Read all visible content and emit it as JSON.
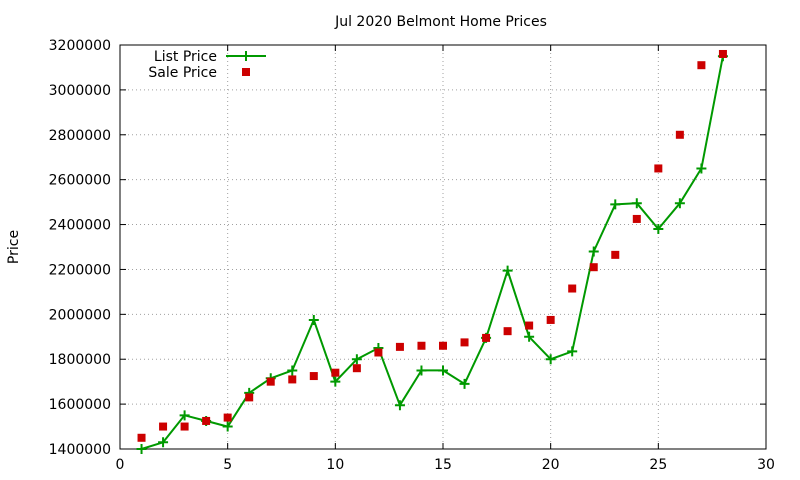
{
  "chart_data": {
    "type": "line",
    "title": "Jul 2020 Belmont Home Prices",
    "xlabel": "",
    "ylabel": "Price",
    "xlim": [
      0,
      30
    ],
    "ylim": [
      1400000,
      3200000
    ],
    "x_ticks": [
      "0",
      "5",
      "10",
      "15",
      "20",
      "25",
      "30"
    ],
    "y_ticks": [
      "1400000",
      "1600000",
      "1800000",
      "2000000",
      "2200000",
      "2400000",
      "2600000",
      "2800000",
      "3000000",
      "3200000"
    ],
    "grid": true,
    "legend_position": "top-left",
    "x": [
      1,
      2,
      3,
      4,
      5,
      6,
      7,
      8,
      9,
      10,
      11,
      12,
      13,
      14,
      15,
      16,
      17,
      18,
      19,
      20,
      21,
      22,
      23,
      24,
      25,
      26,
      27,
      28
    ],
    "series": [
      {
        "name": "List Price",
        "style": "linespoints",
        "color": "#009900",
        "values": [
          1400000,
          1430000,
          1550000,
          1525000,
          1500000,
          1650000,
          1715000,
          1750000,
          1975000,
          1700000,
          1800000,
          1850000,
          1595000,
          1750000,
          1750000,
          1690000,
          1895000,
          2195000,
          1900000,
          1800000,
          1835000,
          2280000,
          2490000,
          2495000,
          2380000,
          2495000,
          2650000,
          3150000
        ]
      },
      {
        "name": "Sale Price",
        "style": "points",
        "color": "#cc0000",
        "values": [
          1450000,
          1500000,
          1500000,
          1525000,
          1540000,
          1630000,
          1700000,
          1710000,
          1725000,
          1740000,
          1760000,
          1830000,
          1855000,
          1860000,
          1860000,
          1875000,
          1895000,
          1925000,
          1950000,
          1975000,
          2115000,
          2210000,
          2265000,
          2425000,
          2650000,
          2800000,
          3110000,
          3160000
        ]
      }
    ]
  }
}
